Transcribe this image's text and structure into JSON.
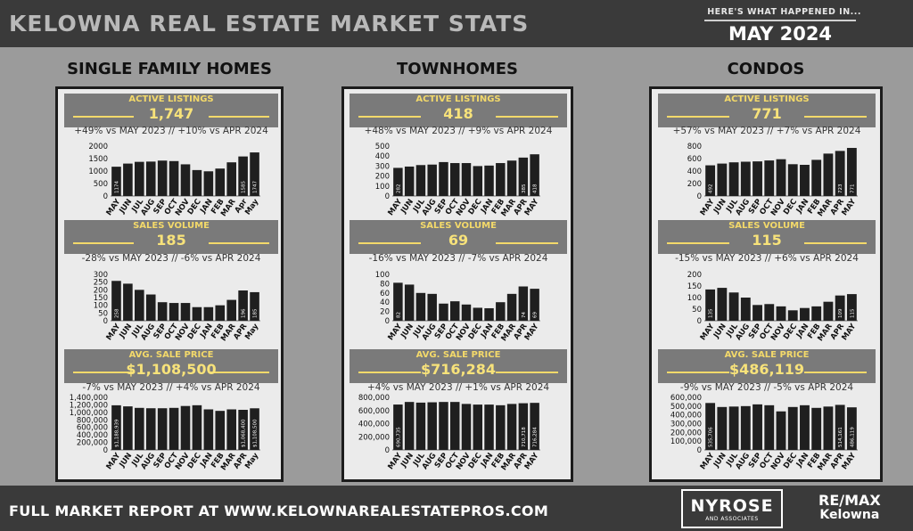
{
  "header": {
    "title": "KELOWNA REAL ESTATE MARKET STATS",
    "kicker": "HERE'S WHAT HAPPENED IN...",
    "month": "MAY 2024"
  },
  "columns": [
    {
      "title": "SINGLE FAMILY HOMES",
      "active": {
        "label": "ACTIVE LISTINGS",
        "value": "1,747",
        "compare": "+49% vs MAY 2023 // +10% vs APR 2024"
      },
      "sales": {
        "label": "SALES VOLUME",
        "value": "185",
        "compare": "-28% vs  MAY 2023 // -6% vs APR 2024"
      },
      "price": {
        "label": "AVG. SALE PRICE",
        "value": "$1,108,500",
        "compare": "-7% vs  MAY 2023 // +4% vs APR 2024"
      }
    },
    {
      "title": "TOWNHOMES",
      "active": {
        "label": "ACTIVE LISTINGS",
        "value": "418",
        "compare": "+48% vs MAY 2023 // +9% vs APR 2024"
      },
      "sales": {
        "label": "SALES VOLUME",
        "value": "69",
        "compare": "-16% vs  MAY 2023 // -7% vs APR 2024"
      },
      "price": {
        "label": "AVG. SALE PRICE",
        "value": "$716,284",
        "compare": "+4% vs  MAY 2023 // +1% vs APR 2024"
      }
    },
    {
      "title": "CONDOS",
      "active": {
        "label": "ACTIVE LISTINGS",
        "value": "771",
        "compare": "+57% vs MAY 2023 // +7% vs APR 2024"
      },
      "sales": {
        "label": "SALES VOLUME",
        "value": "115",
        "compare": "-15% vs  MAY 2023 // +6% vs APR 2024"
      },
      "price": {
        "label": "AVG. SALE PRICE",
        "value": "$486,119",
        "compare": "-9% vs  MAY 2023 // -5% vs APR 2024"
      }
    }
  ],
  "chart_data": [
    {
      "id": "sf-active",
      "type": "bar",
      "categories": [
        "MAY",
        "JUN",
        "JUL",
        "AUG",
        "SEP",
        "OCT",
        "NOV",
        "DEC",
        "JAN",
        "FEB",
        "MAR",
        "Apr",
        "May"
      ],
      "values": [
        1174,
        1300,
        1370,
        1380,
        1420,
        1400,
        1270,
        1040,
        990,
        1100,
        1350,
        1585,
        1747
      ],
      "ylim": [
        0,
        2000
      ],
      "yticks": [
        "0",
        "500",
        "1000",
        "1500",
        "2000"
      ],
      "data_labels": {
        "0": "1174",
        "11": "1585",
        "12": "1747"
      }
    },
    {
      "id": "sf-sales",
      "type": "bar",
      "categories": [
        "MAY",
        "JUN",
        "JUL",
        "AUG",
        "SEP",
        "OCT",
        "NOV",
        "DEC",
        "JAN",
        "FEB",
        "MAR",
        "APR",
        "May"
      ],
      "values": [
        258,
        240,
        200,
        170,
        120,
        115,
        115,
        88,
        88,
        100,
        135,
        196,
        185
      ],
      "ylim": [
        0,
        300
      ],
      "yticks": [
        "0",
        "50",
        "100",
        "150",
        "200",
        "250",
        "300"
      ],
      "data_labels": {
        "0": "258",
        "11": "196",
        "12": "185"
      }
    },
    {
      "id": "sf-price",
      "type": "bar",
      "categories": [
        "MAY",
        "JUN",
        "JUL",
        "AUG",
        "SEP",
        "OCT",
        "NOV",
        "DEC",
        "JAN",
        "FEB",
        "MAR",
        "APR",
        "May"
      ],
      "values": [
        1188939,
        1160000,
        1120000,
        1110000,
        1110000,
        1120000,
        1170000,
        1190000,
        1080000,
        1040000,
        1080000,
        1068400,
        1108500
      ],
      "ylim": [
        0,
        1400000
      ],
      "yticks": [
        "0",
        "200,000",
        "400,000",
        "600,000",
        "800,000",
        "1,000,000",
        "1,200,000",
        "1,400,000"
      ],
      "data_labels": {
        "0": "$1,188,939",
        "11": "$1,068,400",
        "12": "$1,108,500"
      }
    },
    {
      "id": "th-active",
      "type": "bar",
      "categories": [
        "MAY",
        "JUN",
        "JUL",
        "AUG",
        "SEP",
        "OCT",
        "NOV",
        "DEC",
        "JAN",
        "FEB",
        "MAR",
        "APR",
        "MAY"
      ],
      "values": [
        282,
        295,
        310,
        315,
        340,
        330,
        330,
        300,
        305,
        330,
        355,
        385,
        418
      ],
      "ylim": [
        0,
        500
      ],
      "yticks": [
        "0",
        "100",
        "200",
        "300",
        "400",
        "500"
      ],
      "data_labels": {
        "0": "282",
        "11": "385",
        "12": "418"
      }
    },
    {
      "id": "th-sales",
      "type": "bar",
      "categories": [
        "MAY",
        "JUN",
        "JUL",
        "AUG",
        "SEP",
        "OCT",
        "NOV",
        "DEC",
        "JAN",
        "FEB",
        "MAR",
        "APR",
        "MAY"
      ],
      "values": [
        82,
        78,
        60,
        58,
        37,
        42,
        35,
        28,
        27,
        40,
        58,
        74,
        69
      ],
      "ylim": [
        0,
        100
      ],
      "yticks": [
        "0",
        "20",
        "40",
        "60",
        "80",
        "100"
      ],
      "data_labels": {
        "0": "82",
        "11": "74",
        "12": "69"
      }
    },
    {
      "id": "th-price",
      "type": "bar",
      "categories": [
        "MAY",
        "JUN",
        "JUL",
        "AUG",
        "SEP",
        "OCT",
        "NOV",
        "DEC",
        "JAN",
        "FEB",
        "MAR",
        "APR",
        "MAY"
      ],
      "values": [
        690735,
        730000,
        720000,
        725000,
        730000,
        730000,
        700000,
        690000,
        690000,
        680000,
        700000,
        710718,
        716284
      ],
      "ylim": [
        0,
        800000
      ],
      "yticks": [
        "0",
        "200,000",
        "400,000",
        "600,000",
        "800,000"
      ],
      "data_labels": {
        "0": "690,735",
        "11": "710,718",
        "12": "716,284"
      }
    },
    {
      "id": "co-active",
      "type": "bar",
      "categories": [
        "MAY",
        "JUN",
        "JUL",
        "AUG",
        "SEP",
        "OCT",
        "NOV",
        "DEC",
        "JAN",
        "FEB",
        "MAR",
        "APR",
        "MAY"
      ],
      "values": [
        492,
        520,
        540,
        550,
        555,
        570,
        590,
        510,
        500,
        580,
        680,
        723,
        771
      ],
      "ylim": [
        0,
        800
      ],
      "yticks": [
        "0",
        "200",
        "400",
        "600",
        "800"
      ],
      "data_labels": {
        "0": "492",
        "11": "723",
        "12": "771"
      }
    },
    {
      "id": "co-sales",
      "type": "bar",
      "categories": [
        "MAY",
        "JUN",
        "JUL",
        "AUG",
        "SEP",
        "OCT",
        "NOV",
        "DEC",
        "JAN",
        "FEB",
        "MAR",
        "APR",
        "MAY"
      ],
      "values": [
        135,
        142,
        122,
        100,
        68,
        72,
        62,
        45,
        55,
        62,
        82,
        109,
        115
      ],
      "ylim": [
        0,
        200
      ],
      "yticks": [
        "0",
        "50",
        "100",
        "150",
        "200"
      ],
      "data_labels": {
        "0": "135",
        "11": "109",
        "12": "115"
      }
    },
    {
      "id": "co-price",
      "type": "bar",
      "categories": [
        "MAY",
        "JUN",
        "JUL",
        "AUG",
        "SEP",
        "OCT",
        "NOV",
        "DEC",
        "JAN",
        "FEB",
        "MAR",
        "APR",
        "MAY"
      ],
      "values": [
        535706,
        490000,
        495000,
        500000,
        520000,
        510000,
        440000,
        490000,
        510000,
        480000,
        495000,
        514161,
        486119
      ],
      "ylim": [
        0,
        600000
      ],
      "yticks": [
        "0",
        "100,000",
        "200,000",
        "300,000",
        "400,000",
        "500,000",
        "600,000"
      ],
      "data_labels": {
        "0": "535,706",
        "11": "514,161",
        "12": "486,119"
      }
    }
  ],
  "footer": {
    "text": "FULL MARKET REPORT AT WWW.KELOWNAREALESTATEPROS.COM",
    "logo1_main": "NYROSE",
    "logo1_sub": "AND ASSOCIATES",
    "logo2_line1": "RE/MAX",
    "logo2_line2": "Kelowna"
  },
  "colors": {
    "bar": "#1f1f1f",
    "accent": "#f3d96a",
    "panel": "#ebebeb",
    "dark": "#3a3a3a"
  }
}
